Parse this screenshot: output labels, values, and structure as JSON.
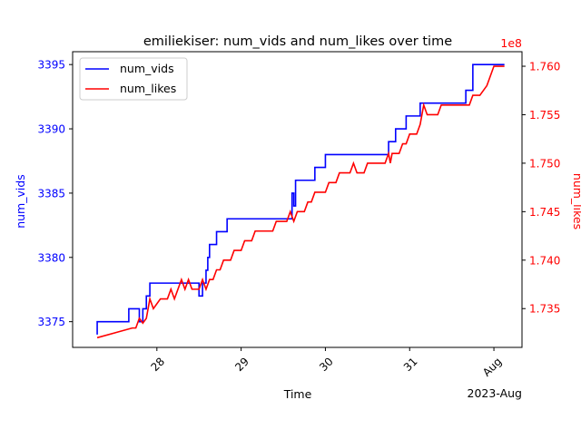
{
  "chart_data": {
    "type": "line",
    "title": "emiliekiser: num_vids and num_likes over time",
    "xlabel": "Time",
    "x_offset_label": "2023-Aug",
    "xlim": [
      "2023-07-27T00:00",
      "2023-08-01T08:00"
    ],
    "x_ticks": [
      {
        "t": "2023-07-28T00:00",
        "label": "28"
      },
      {
        "t": "2023-07-29T00:00",
        "label": "29"
      },
      {
        "t": "2023-07-30T00:00",
        "label": "30"
      },
      {
        "t": "2023-07-31T00:00",
        "label": "31"
      },
      {
        "t": "2023-08-01T00:00",
        "label": "Aug"
      }
    ],
    "left_axis": {
      "label": "num_vids",
      "color": "#0000ff",
      "ylim": [
        3373,
        3396
      ],
      "ticks": [
        3375,
        3380,
        3385,
        3390,
        3395
      ]
    },
    "right_axis": {
      "label": "num_likes",
      "color": "#ff0000",
      "offset_label": "1e8",
      "scale": 100000000,
      "ylim": [
        1.731,
        1.7615
      ],
      "ticks": [
        1.735,
        1.74,
        1.745,
        1.75,
        1.755,
        1.76
      ],
      "tick_labels": [
        "1.735",
        "1.740",
        "1.745",
        "1.750",
        "1.755",
        "1.760"
      ]
    },
    "legend": {
      "placement": "top-left"
    },
    "grid": false,
    "series": [
      {
        "name": "num_vids",
        "axis": "left",
        "color": "#0000ff",
        "step": true,
        "points": [
          [
            "2023-07-27T07:00",
            3374
          ],
          [
            "2023-07-27T07:00",
            3375
          ],
          [
            "2023-07-27T16:00",
            3375
          ],
          [
            "2023-07-27T16:00",
            3376
          ],
          [
            "2023-07-27T19:00",
            3376
          ],
          [
            "2023-07-27T19:00",
            3375
          ],
          [
            "2023-07-27T20:00",
            3375
          ],
          [
            "2023-07-27T20:00",
            3376
          ],
          [
            "2023-07-27T21:00",
            3376
          ],
          [
            "2023-07-27T21:00",
            3377
          ],
          [
            "2023-07-27T22:00",
            3377
          ],
          [
            "2023-07-27T22:00",
            3378
          ],
          [
            "2023-07-28T12:00",
            3378
          ],
          [
            "2023-07-28T12:00",
            3377
          ],
          [
            "2023-07-28T13:00",
            3377
          ],
          [
            "2023-07-28T13:00",
            3378
          ],
          [
            "2023-07-28T14:00",
            3378
          ],
          [
            "2023-07-28T14:00",
            3379
          ],
          [
            "2023-07-28T14:30",
            3379
          ],
          [
            "2023-07-28T14:30",
            3380
          ],
          [
            "2023-07-28T15:00",
            3380
          ],
          [
            "2023-07-28T15:00",
            3381
          ],
          [
            "2023-07-28T17:00",
            3381
          ],
          [
            "2023-07-28T17:00",
            3382
          ],
          [
            "2023-07-28T20:00",
            3382
          ],
          [
            "2023-07-28T20:00",
            3383
          ],
          [
            "2023-07-29T14:00",
            3383
          ],
          [
            "2023-07-29T14:30",
            3383
          ],
          [
            "2023-07-29T14:30",
            3385
          ],
          [
            "2023-07-29T15:00",
            3385
          ],
          [
            "2023-07-29T15:00",
            3384
          ],
          [
            "2023-07-29T15:30",
            3384
          ],
          [
            "2023-07-29T15:30",
            3386
          ],
          [
            "2023-07-29T21:00",
            3386
          ],
          [
            "2023-07-29T21:00",
            3387
          ],
          [
            "2023-07-30T00:00",
            3387
          ],
          [
            "2023-07-30T00:00",
            3388
          ],
          [
            "2023-07-30T16:00",
            3388
          ],
          [
            "2023-07-30T16:00",
            3388
          ],
          [
            "2023-07-30T18:00",
            3388
          ],
          [
            "2023-07-30T18:00",
            3389
          ],
          [
            "2023-07-30T20:00",
            3389
          ],
          [
            "2023-07-30T20:00",
            3390
          ],
          [
            "2023-07-30T23:00",
            3390
          ],
          [
            "2023-07-30T23:00",
            3391
          ],
          [
            "2023-07-31T03:00",
            3391
          ],
          [
            "2023-07-31T03:00",
            3392
          ],
          [
            "2023-07-31T16:00",
            3392
          ],
          [
            "2023-07-31T16:00",
            3393
          ],
          [
            "2023-07-31T18:00",
            3393
          ],
          [
            "2023-07-31T18:00",
            3395
          ],
          [
            "2023-08-01T03:00",
            3395
          ]
        ]
      },
      {
        "name": "num_likes",
        "axis": "right",
        "color": "#ff0000",
        "step": false,
        "points": [
          [
            "2023-07-27T07:00",
            1.732
          ],
          [
            "2023-07-27T17:00",
            1.733
          ],
          [
            "2023-07-27T18:00",
            1.733
          ],
          [
            "2023-07-27T19:00",
            1.734
          ],
          [
            "2023-07-27T20:00",
            1.7335
          ],
          [
            "2023-07-27T21:00",
            1.734
          ],
          [
            "2023-07-27T22:00",
            1.736
          ],
          [
            "2023-07-27T23:00",
            1.735
          ],
          [
            "2023-07-28T01:00",
            1.736
          ],
          [
            "2023-07-28T03:00",
            1.736
          ],
          [
            "2023-07-28T04:00",
            1.737
          ],
          [
            "2023-07-28T05:00",
            1.736
          ],
          [
            "2023-07-28T07:00",
            1.738
          ],
          [
            "2023-07-28T08:00",
            1.737
          ],
          [
            "2023-07-28T09:00",
            1.738
          ],
          [
            "2023-07-28T10:00",
            1.737
          ],
          [
            "2023-07-28T12:00",
            1.737
          ],
          [
            "2023-07-28T13:00",
            1.738
          ],
          [
            "2023-07-28T14:00",
            1.737
          ],
          [
            "2023-07-28T15:00",
            1.738
          ],
          [
            "2023-07-28T16:00",
            1.738
          ],
          [
            "2023-07-28T17:00",
            1.739
          ],
          [
            "2023-07-28T18:00",
            1.739
          ],
          [
            "2023-07-28T19:00",
            1.74
          ],
          [
            "2023-07-28T21:00",
            1.74
          ],
          [
            "2023-07-28T22:00",
            1.741
          ],
          [
            "2023-07-29T00:00",
            1.741
          ],
          [
            "2023-07-29T01:00",
            1.742
          ],
          [
            "2023-07-29T03:00",
            1.742
          ],
          [
            "2023-07-29T04:00",
            1.743
          ],
          [
            "2023-07-29T09:00",
            1.743
          ],
          [
            "2023-07-29T10:00",
            1.744
          ],
          [
            "2023-07-29T13:00",
            1.744
          ],
          [
            "2023-07-29T14:00",
            1.745
          ],
          [
            "2023-07-29T15:00",
            1.744
          ],
          [
            "2023-07-29T16:00",
            1.745
          ],
          [
            "2023-07-29T18:00",
            1.745
          ],
          [
            "2023-07-29T19:00",
            1.746
          ],
          [
            "2023-07-29T20:00",
            1.746
          ],
          [
            "2023-07-29T21:00",
            1.747
          ],
          [
            "2023-07-30T00:00",
            1.747
          ],
          [
            "2023-07-30T01:00",
            1.748
          ],
          [
            "2023-07-30T03:00",
            1.748
          ],
          [
            "2023-07-30T04:00",
            1.749
          ],
          [
            "2023-07-30T07:00",
            1.749
          ],
          [
            "2023-07-30T08:00",
            1.75
          ],
          [
            "2023-07-30T09:00",
            1.749
          ],
          [
            "2023-07-30T11:00",
            1.749
          ],
          [
            "2023-07-30T12:00",
            1.75
          ],
          [
            "2023-07-30T17:00",
            1.75
          ],
          [
            "2023-07-30T18:00",
            1.751
          ],
          [
            "2023-07-30T18:30",
            1.75
          ],
          [
            "2023-07-30T19:00",
            1.751
          ],
          [
            "2023-07-30T21:00",
            1.751
          ],
          [
            "2023-07-30T22:00",
            1.752
          ],
          [
            "2023-07-30T23:00",
            1.752
          ],
          [
            "2023-07-31T00:00",
            1.753
          ],
          [
            "2023-07-31T02:00",
            1.753
          ],
          [
            "2023-07-31T03:00",
            1.754
          ],
          [
            "2023-07-31T04:00",
            1.756
          ],
          [
            "2023-07-31T05:00",
            1.755
          ],
          [
            "2023-07-31T08:00",
            1.755
          ],
          [
            "2023-07-31T09:00",
            1.756
          ],
          [
            "2023-07-31T17:00",
            1.756
          ],
          [
            "2023-07-31T18:00",
            1.757
          ],
          [
            "2023-07-31T20:00",
            1.757
          ],
          [
            "2023-07-31T22:00",
            1.758
          ],
          [
            "2023-08-01T00:00",
            1.76
          ],
          [
            "2023-08-01T03:00",
            1.76
          ]
        ]
      }
    ]
  }
}
